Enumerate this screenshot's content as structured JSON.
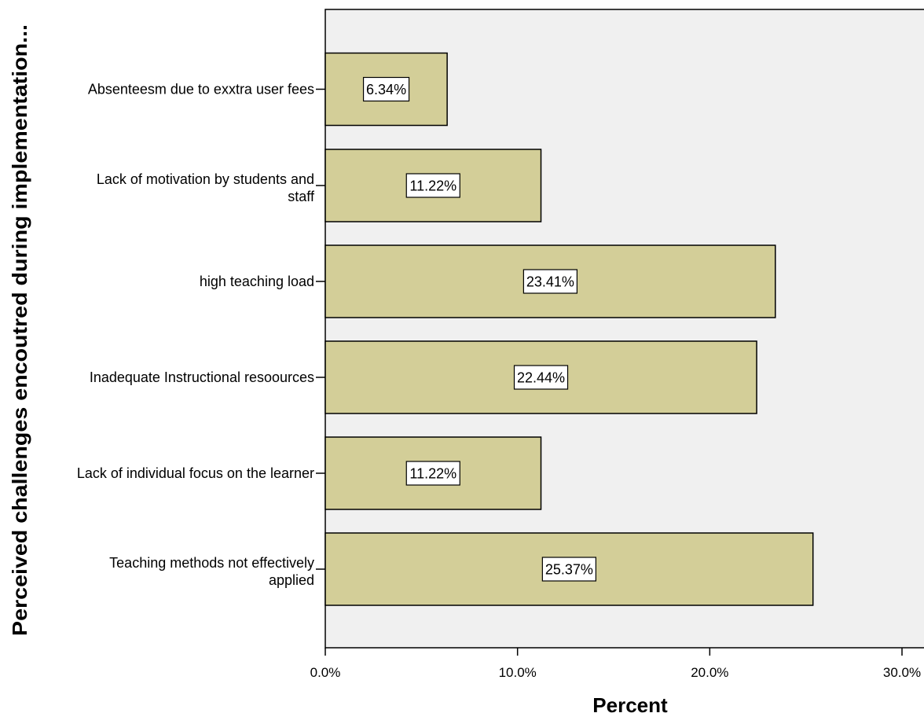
{
  "chart_data": {
    "type": "bar",
    "orientation": "horizontal",
    "categories": [
      [
        "Absenteesm due to exxtra user fees"
      ],
      [
        "Lack of motivation by students and",
        "staff"
      ],
      [
        "high teaching load"
      ],
      [
        "Inadequate  Instructional resoources"
      ],
      [
        "Lack of individual focus on the learner"
      ],
      [
        "Teaching methods not effectively",
        "applied"
      ]
    ],
    "values": [
      6.34,
      11.22,
      23.41,
      22.44,
      11.22,
      25.37
    ],
    "data_labels": [
      "6.34%",
      "11.22%",
      "23.41%",
      "22.44%",
      "11.22%",
      "25.37%"
    ],
    "xlabel": "Percent",
    "ylabel": "Perceived challenges encoutred during implementation...",
    "xlim": [
      0,
      30
    ],
    "xticks": [
      0,
      10,
      20,
      30
    ],
    "xtick_labels": [
      "0.0%",
      "10.0%",
      "20.0%",
      "30.0%"
    ],
    "grid": false,
    "legend": "none",
    "colors": {
      "bar_fill": "#D3CE98",
      "plot_background": "#F0F0F0",
      "stroke": "#000000",
      "label_box": "#FFFFFF"
    }
  }
}
